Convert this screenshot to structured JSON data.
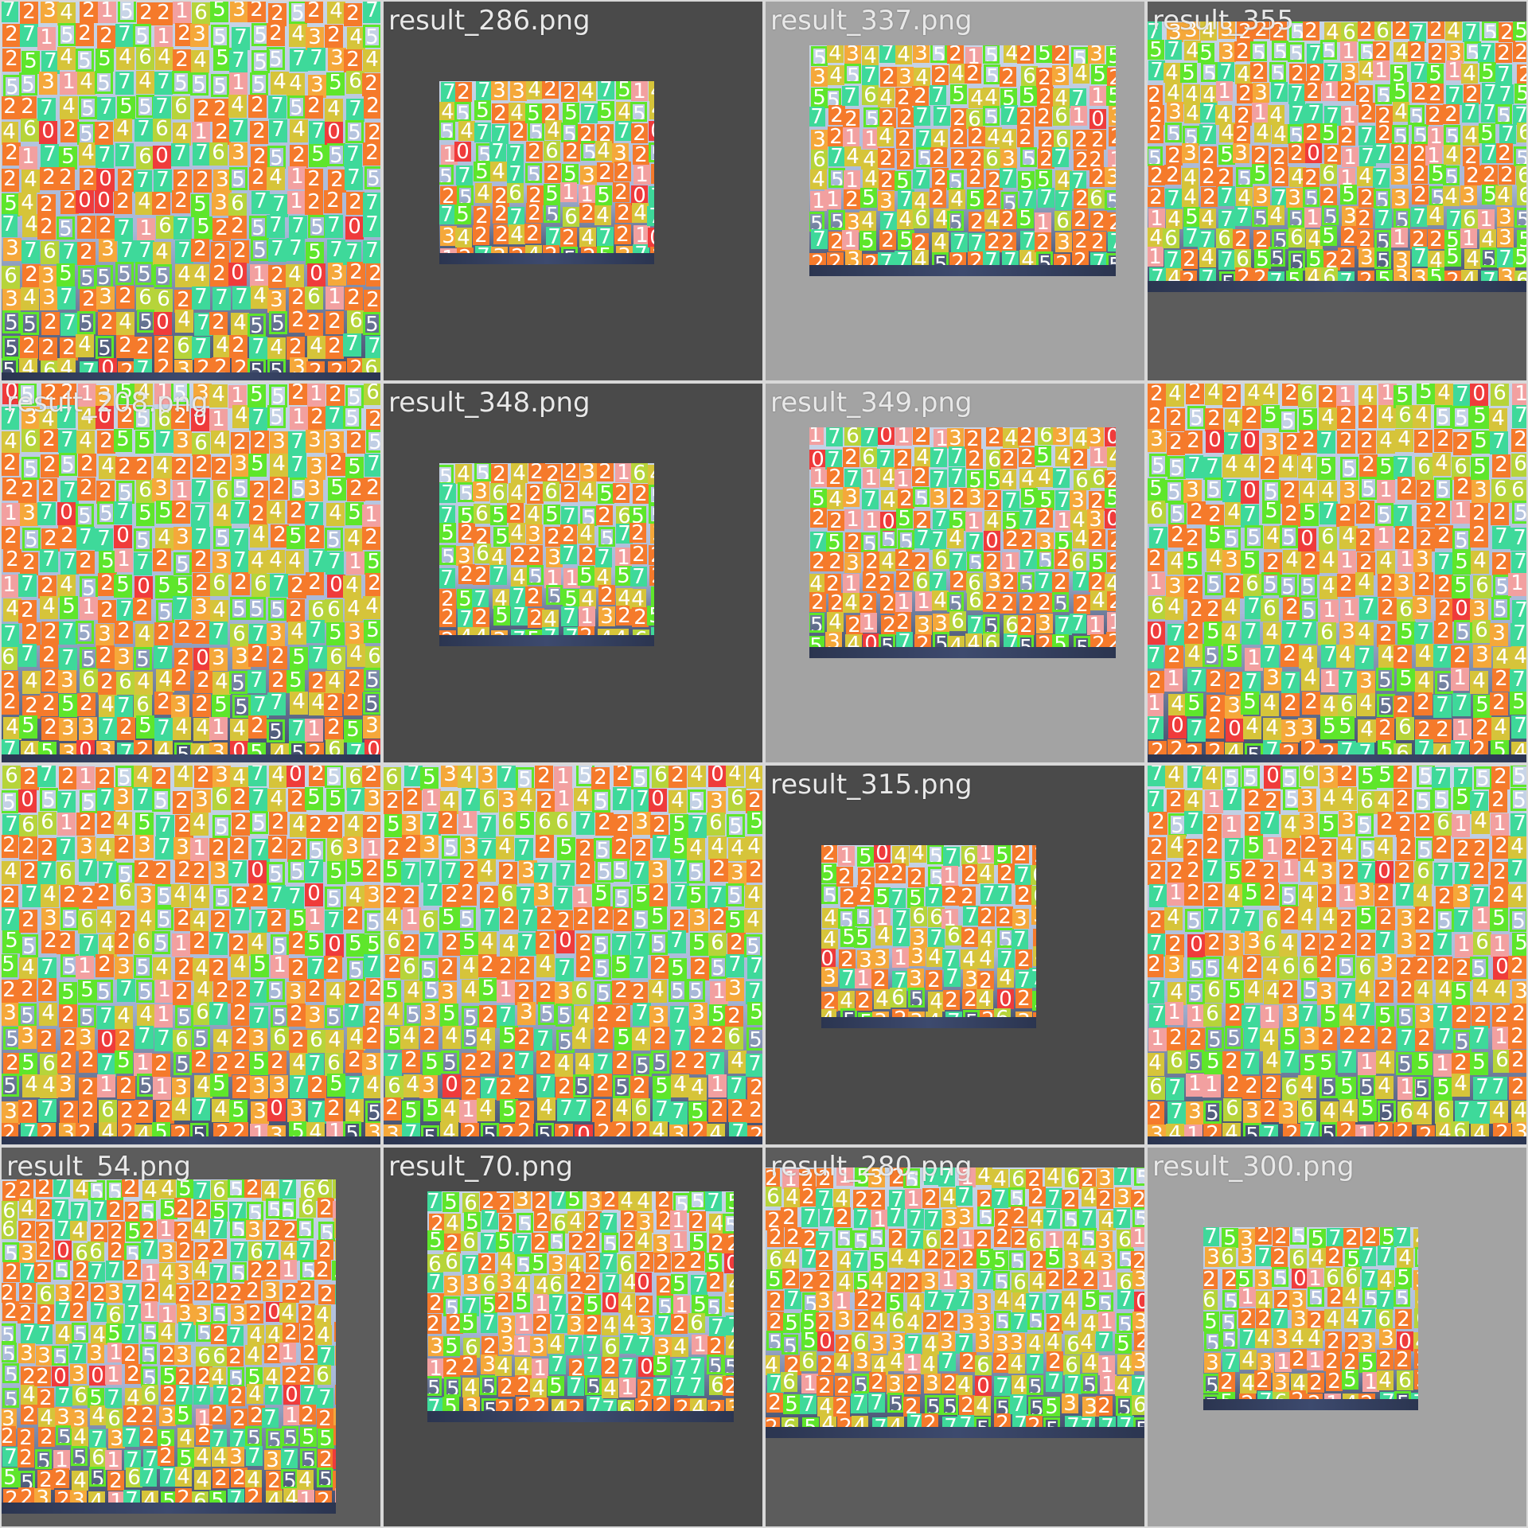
{
  "colors": {
    "light_bg": "#a3a3a3",
    "dark_bg": "#4a4a4a",
    "mid_bg": "#5c5c5c",
    "class_0": "#ef3b3b",
    "class_1": "#f2a0a0",
    "class_2": "#f57a2b",
    "class_3": "#f5a83a",
    "class_4": "#d6c43a",
    "class_5": "#5ee62b",
    "class_6": "#b6d43a",
    "class_7": "#3ed99a"
  },
  "tiles": [
    {
      "title": "",
      "bg": "dark",
      "scene": "full",
      "seed": 11
    },
    {
      "title": "result_286.png",
      "bg": "dark",
      "scene": "small",
      "seed": 23
    },
    {
      "title": "result_337.png",
      "bg": "light",
      "scene": "medium",
      "seed": 37
    },
    {
      "title": "result_355",
      "bg": "mid",
      "scene": "wide",
      "seed": 41
    },
    {
      "title": "result_208.png",
      "bg": "dark",
      "scene": "full",
      "seed": 53
    },
    {
      "title": "result_348.png",
      "bg": "dark",
      "scene": "small",
      "seed": 61
    },
    {
      "title": "result_349.png",
      "bg": "light",
      "scene": "medium",
      "seed": 71
    },
    {
      "title": "",
      "bg": "dark",
      "scene": "full",
      "seed": 83
    },
    {
      "title": "",
      "bg": "dark",
      "scene": "full",
      "seed": 97
    },
    {
      "title": "",
      "bg": "dark",
      "scene": "full",
      "seed": 103
    },
    {
      "title": "result_315.png",
      "bg": "dark",
      "scene": "small",
      "seed": 113
    },
    {
      "title": "",
      "bg": "light",
      "scene": "full",
      "seed": 127
    },
    {
      "title": "result_54.png",
      "bg": "mid",
      "scene": "tall",
      "seed": 131
    },
    {
      "title": "result_70.png",
      "bg": "dark",
      "scene": "medium",
      "seed": 139
    },
    {
      "title": "result_280.png",
      "bg": "mid",
      "scene": "wide",
      "seed": 149
    },
    {
      "title": "result_300.png",
      "bg": "light",
      "scene": "small",
      "seed": 157
    }
  ]
}
